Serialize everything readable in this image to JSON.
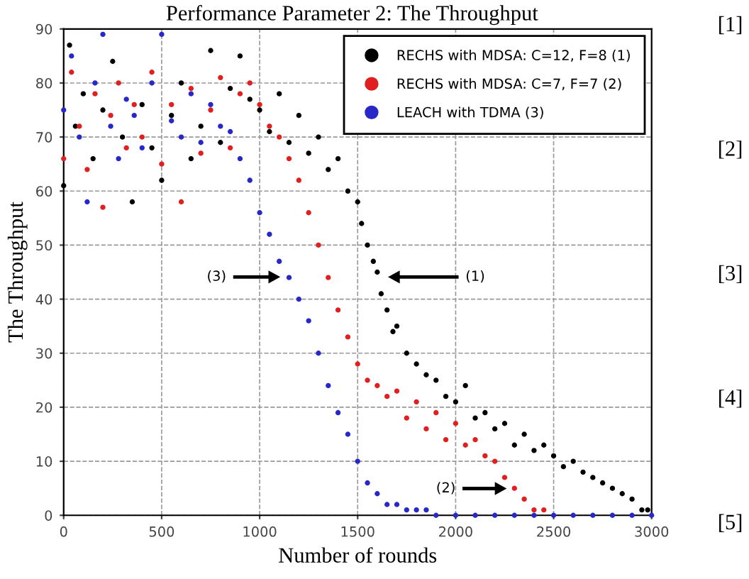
{
  "chart_data": {
    "type": "scatter",
    "title": "Performance Parameter 2: The Throughput",
    "xlabel": "Number of rounds",
    "ylabel": "The Throughput",
    "xlim": [
      0,
      3000
    ],
    "xticks": [
      0,
      500,
      1000,
      1500,
      2000,
      2500,
      3000
    ],
    "ylim": [
      0,
      90
    ],
    "yticks": [
      0,
      10,
      20,
      30,
      40,
      50,
      60,
      70,
      80,
      90
    ],
    "grid": true,
    "legend": "top right",
    "marker": "circle",
    "series": [
      {
        "name": "RECHS with MDSA: C=12, F=8 (1)",
        "color": "#000000",
        "x": [
          0,
          30,
          60,
          100,
          150,
          200,
          250,
          300,
          350,
          400,
          450,
          500,
          550,
          600,
          650,
          700,
          750,
          800,
          850,
          900,
          950,
          1000,
          1050,
          1100,
          1150,
          1200,
          1250,
          1300,
          1350,
          1400,
          1450,
          1500,
          1520,
          1550,
          1580,
          1600,
          1620,
          1650,
          1680,
          1700,
          1750,
          1800,
          1850,
          1900,
          1950,
          2000,
          2050,
          2100,
          2150,
          2200,
          2250,
          2300,
          2350,
          2400,
          2450,
          2500,
          2550,
          2600,
          2650,
          2700,
          2750,
          2800,
          2850,
          2900,
          2950,
          2980
        ],
        "values": [
          61,
          87,
          72,
          78,
          66,
          75,
          84,
          70,
          58,
          76,
          68,
          62,
          74,
          80,
          66,
          72,
          86,
          69,
          79,
          85,
          77,
          75,
          71,
          78,
          69,
          74,
          67,
          70,
          64,
          66,
          60,
          58,
          54,
          50,
          47,
          45,
          41,
          38,
          34,
          35,
          30,
          28,
          26,
          25,
          22,
          21,
          24,
          18,
          19,
          16,
          17,
          13,
          15,
          12,
          13,
          11,
          9,
          10,
          8,
          7,
          6,
          5,
          4,
          3,
          1,
          1
        ]
      },
      {
        "name": "RECHS with MDSA: C=7, F=7 (2)",
        "color": "#e02020",
        "x": [
          0,
          40,
          80,
          120,
          160,
          200,
          240,
          280,
          320,
          360,
          400,
          450,
          500,
          550,
          600,
          650,
          700,
          750,
          800,
          850,
          900,
          950,
          1000,
          1050,
          1100,
          1150,
          1200,
          1250,
          1300,
          1350,
          1400,
          1450,
          1500,
          1550,
          1600,
          1650,
          1700,
          1750,
          1800,
          1850,
          1900,
          1950,
          2000,
          2050,
          2100,
          2150,
          2200,
          2250,
          2300,
          2350,
          2400,
          2450
        ],
        "values": [
          66,
          82,
          72,
          64,
          78,
          57,
          74,
          80,
          68,
          76,
          70,
          82,
          65,
          76,
          58,
          79,
          67,
          75,
          81,
          68,
          78,
          80,
          76,
          72,
          70,
          66,
          62,
          56,
          50,
          44,
          38,
          33,
          28,
          25,
          24,
          22,
          23,
          18,
          21,
          16,
          19,
          14,
          17,
          13,
          14,
          11,
          10,
          7,
          5,
          3,
          1,
          1
        ]
      },
      {
        "name": "LEACH with TDMA (3)",
        "color": "#2828c8",
        "x": [
          0,
          40,
          80,
          120,
          160,
          200,
          240,
          280,
          320,
          360,
          400,
          450,
          500,
          550,
          600,
          650,
          700,
          750,
          800,
          850,
          900,
          950,
          1000,
          1050,
          1100,
          1150,
          1200,
          1250,
          1300,
          1350,
          1400,
          1450,
          1500,
          1550,
          1600,
          1650,
          1700,
          1750,
          1800,
          1850,
          1900,
          2000,
          2100,
          2200,
          2300,
          2400,
          2500,
          2600,
          2700,
          2800,
          2900,
          3000
        ],
        "values": [
          75,
          85,
          70,
          58,
          80,
          89,
          72,
          66,
          77,
          74,
          68,
          80,
          89,
          73,
          70,
          78,
          69,
          76,
          72,
          71,
          66,
          62,
          56,
          52,
          47,
          44,
          40,
          36,
          30,
          24,
          19,
          15,
          10,
          6,
          4,
          2,
          2,
          1,
          1,
          1,
          0,
          0,
          0,
          0,
          0,
          0,
          0,
          0,
          0,
          0,
          0,
          0
        ]
      }
    ],
    "annotations": [
      "(3)",
      "(1)",
      "(2)",
      "[1]",
      "[2]",
      "[3]",
      "[4]",
      "[5]"
    ]
  }
}
